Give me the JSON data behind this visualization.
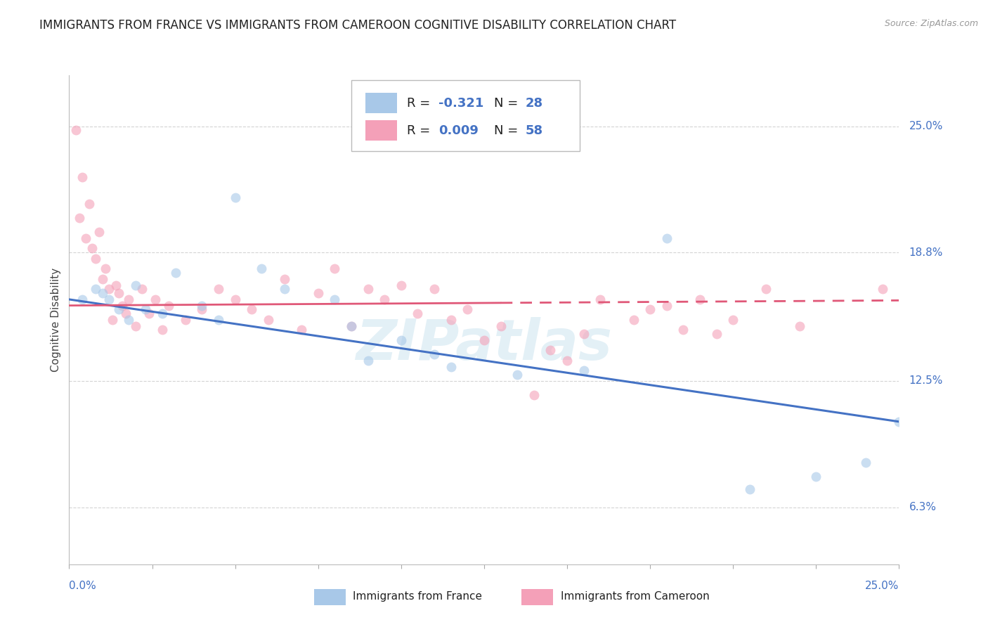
{
  "title": "IMMIGRANTS FROM FRANCE VS IMMIGRANTS FROM CAMEROON COGNITIVE DISABILITY CORRELATION CHART",
  "source": "Source: ZipAtlas.com",
  "ylabel": "Cognitive Disability",
  "ytick_labels": [
    "6.3%",
    "12.5%",
    "18.8%",
    "25.0%"
  ],
  "ytick_values": [
    6.3,
    12.5,
    18.8,
    25.0
  ],
  "xlim": [
    0.0,
    25.0
  ],
  "ylim": [
    3.5,
    27.5
  ],
  "r_color": "#4472c4",
  "france_color": "#a8c8e8",
  "cameroon_color": "#f4a0b8",
  "france_line_color": "#4472c4",
  "cameroon_line_color": "#e05878",
  "france_scatter": [
    [
      0.4,
      16.5
    ],
    [
      0.8,
      17.0
    ],
    [
      1.0,
      16.8
    ],
    [
      1.2,
      16.5
    ],
    [
      1.5,
      16.0
    ],
    [
      1.8,
      15.5
    ],
    [
      2.0,
      17.2
    ],
    [
      2.3,
      16.0
    ],
    [
      2.8,
      15.8
    ],
    [
      3.2,
      17.8
    ],
    [
      4.0,
      16.2
    ],
    [
      4.5,
      15.5
    ],
    [
      5.0,
      21.5
    ],
    [
      5.8,
      18.0
    ],
    [
      6.5,
      17.0
    ],
    [
      8.0,
      16.5
    ],
    [
      8.5,
      15.2
    ],
    [
      9.0,
      13.5
    ],
    [
      10.0,
      14.5
    ],
    [
      11.0,
      13.8
    ],
    [
      11.5,
      13.2
    ],
    [
      13.5,
      12.8
    ],
    [
      15.5,
      13.0
    ],
    [
      18.0,
      19.5
    ],
    [
      20.5,
      7.2
    ],
    [
      22.5,
      7.8
    ],
    [
      24.0,
      8.5
    ],
    [
      25.0,
      10.5
    ]
  ],
  "cameroon_scatter": [
    [
      0.2,
      24.8
    ],
    [
      0.3,
      20.5
    ],
    [
      0.4,
      22.5
    ],
    [
      0.5,
      19.5
    ],
    [
      0.6,
      21.2
    ],
    [
      0.7,
      19.0
    ],
    [
      0.8,
      18.5
    ],
    [
      0.9,
      19.8
    ],
    [
      1.0,
      17.5
    ],
    [
      1.1,
      18.0
    ],
    [
      1.2,
      17.0
    ],
    [
      1.3,
      15.5
    ],
    [
      1.4,
      17.2
    ],
    [
      1.5,
      16.8
    ],
    [
      1.6,
      16.2
    ],
    [
      1.7,
      15.8
    ],
    [
      1.8,
      16.5
    ],
    [
      2.0,
      15.2
    ],
    [
      2.2,
      17.0
    ],
    [
      2.4,
      15.8
    ],
    [
      2.6,
      16.5
    ],
    [
      2.8,
      15.0
    ],
    [
      3.0,
      16.2
    ],
    [
      3.5,
      15.5
    ],
    [
      4.0,
      16.0
    ],
    [
      4.5,
      17.0
    ],
    [
      5.0,
      16.5
    ],
    [
      5.5,
      16.0
    ],
    [
      6.0,
      15.5
    ],
    [
      6.5,
      17.5
    ],
    [
      7.0,
      15.0
    ],
    [
      7.5,
      16.8
    ],
    [
      8.0,
      18.0
    ],
    [
      8.5,
      15.2
    ],
    [
      9.0,
      17.0
    ],
    [
      9.5,
      16.5
    ],
    [
      10.0,
      17.2
    ],
    [
      10.5,
      15.8
    ],
    [
      11.0,
      17.0
    ],
    [
      11.5,
      15.5
    ],
    [
      12.0,
      16.0
    ],
    [
      12.5,
      14.5
    ],
    [
      13.0,
      15.2
    ],
    [
      14.0,
      11.8
    ],
    [
      14.5,
      14.0
    ],
    [
      15.0,
      13.5
    ],
    [
      15.5,
      14.8
    ],
    [
      16.0,
      16.5
    ],
    [
      17.0,
      15.5
    ],
    [
      17.5,
      16.0
    ],
    [
      18.0,
      16.2
    ],
    [
      18.5,
      15.0
    ],
    [
      19.0,
      16.5
    ],
    [
      19.5,
      14.8
    ],
    [
      20.0,
      15.5
    ],
    [
      21.0,
      17.0
    ],
    [
      22.0,
      15.2
    ],
    [
      24.5,
      17.0
    ]
  ],
  "background_color": "#ffffff",
  "grid_color": "#d0d0d0",
  "title_fontsize": 12,
  "tick_fontsize": 11,
  "scatter_size": 100,
  "scatter_alpha": 0.6
}
